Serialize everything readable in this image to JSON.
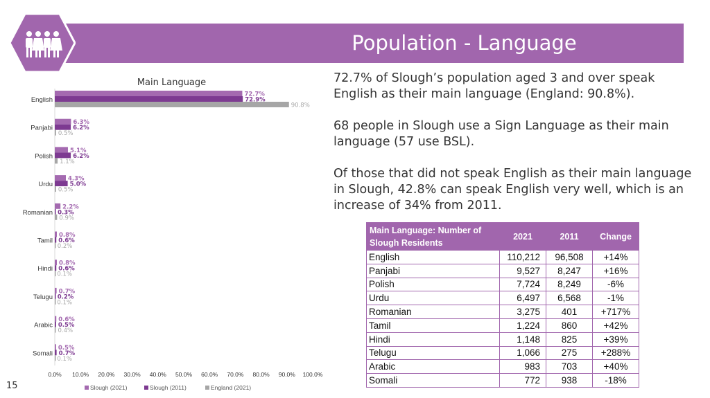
{
  "title": "Population - Language",
  "page_number": "15",
  "colors": {
    "brand": "#a166ad",
    "slough_2021": "#a46ab0",
    "slough_2011": "#7d3a91",
    "england_2021": "#a6a6a6"
  },
  "paragraphs": [
    "72.7% of Slough’s population aged 3 and over speak English as their main language (England: 90.8%).",
    "68 people in Slough use a Sign Language as their main language (57 use BSL).",
    "Of those that did not speak English as their main language in Slough, 42.8% can speak English very well, which is an increase of 34% from 2011."
  ],
  "table": {
    "headers": [
      "Main Language: Number of Slough Residents",
      "2021",
      "2011",
      "Change"
    ],
    "rows": [
      [
        "English",
        "110,212",
        "96,508",
        "+14%"
      ],
      [
        "Panjabi",
        "9,527",
        "8,247",
        "+16%"
      ],
      [
        "Polish",
        "7,724",
        "8,249",
        "-6%"
      ],
      [
        "Urdu",
        "6,497",
        "6,568",
        "-1%"
      ],
      [
        "Romanian",
        "3,275",
        "401",
        "+717%"
      ],
      [
        "Tamil",
        "1,224",
        "860",
        "+42%"
      ],
      [
        "Hindi",
        "1,148",
        "825",
        "+39%"
      ],
      [
        "Telugu",
        "1,066",
        "275",
        "+288%"
      ],
      [
        "Arabic",
        "983",
        "703",
        "+40%"
      ],
      [
        "Somali",
        "772",
        "938",
        "-18%"
      ]
    ]
  },
  "chart_data": {
    "type": "bar",
    "orientation": "horizontal",
    "title": "Main Language",
    "categories": [
      "English",
      "Panjabi",
      "Polish",
      "Urdu",
      "Romanian",
      "Tamil",
      "Hindi",
      "Telugu",
      "Arabic",
      "Somali"
    ],
    "series": [
      {
        "name": "Slough (2021)",
        "values": [
          72.7,
          6.3,
          5.1,
          4.3,
          2.2,
          0.8,
          0.8,
          0.7,
          0.6,
          0.5
        ]
      },
      {
        "name": "Slough (2011)",
        "values": [
          72.9,
          6.2,
          6.2,
          5.0,
          0.3,
          0.6,
          0.6,
          0.2,
          0.5,
          0.7
        ]
      },
      {
        "name": "England (2021)",
        "values": [
          90.8,
          0.5,
          1.1,
          0.5,
          0.9,
          0.2,
          0.1,
          0.1,
          0.4,
          0.1
        ]
      }
    ],
    "xlim": [
      0,
      100
    ],
    "x_ticks": [
      "0.0%",
      "10.0%",
      "20.0%",
      "30.0%",
      "40.0%",
      "50.0%",
      "60.0%",
      "70.0%",
      "80.0%",
      "90.0%",
      "100.0%"
    ],
    "value_format": "percent-1dp",
    "grid": false,
    "legend": "bottom"
  }
}
